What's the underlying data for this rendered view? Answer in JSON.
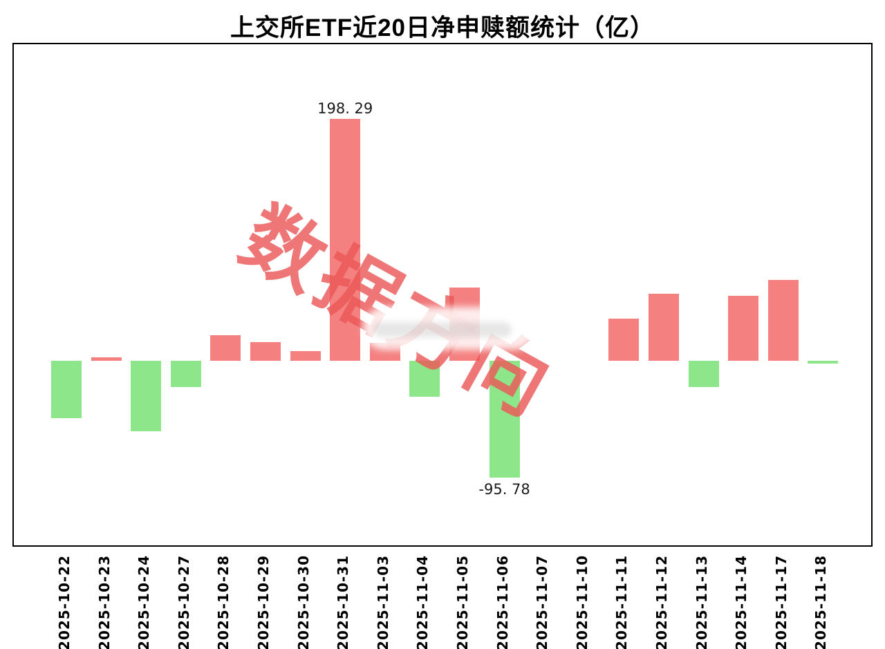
{
  "title": "上交所ETF近20日净申赎额统计（亿）",
  "watermark": {
    "text": "数据方向"
  },
  "colors": {
    "positive": "#f48080",
    "negative": "#8ee68a",
    "watermark": "rgba(236,88,88,0.82)",
    "plot_border": "#000000",
    "label_text": "#1a1a1a"
  },
  "annotations": {
    "max_label": "198. 29",
    "min_label": "-95. 78"
  },
  "chart_data": {
    "type": "bar",
    "title": "上交所ETF近20日净申赎额统计（亿）",
    "xlabel": "",
    "ylabel": "",
    "grid": false,
    "legend": "none",
    "ylim": [
      -120,
      220
    ],
    "categories": [
      "2025-10-22",
      "2025-10-23",
      "2025-10-24",
      "2025-10-27",
      "2025-10-28",
      "2025-10-29",
      "2025-10-30",
      "2025-10-31",
      "2025-11-03",
      "2025-11-04",
      "2025-11-05",
      "2025-11-06",
      "2025-11-07",
      "2025-11-10",
      "2025-11-11",
      "2025-11-12",
      "2025-11-13",
      "2025-11-14",
      "2025-11-17",
      "2025-11-18"
    ],
    "values": [
      -47.0,
      3.0,
      -58.0,
      -21.5,
      21.0,
      15.3,
      8.0,
      198.29,
      14.5,
      -29.5,
      60.0,
      -95.78,
      0,
      0,
      34.6,
      55.0,
      -21.5,
      53.3,
      66.3,
      -2.3
    ],
    "labeled_points": [
      {
        "category": "2025-10-31",
        "value": 198.29,
        "label": "198. 29"
      },
      {
        "category": "2025-11-06",
        "value": -95.78,
        "label": "-95. 78"
      }
    ],
    "positive_color": "#f48080",
    "negative_color": "#8ee68a"
  }
}
